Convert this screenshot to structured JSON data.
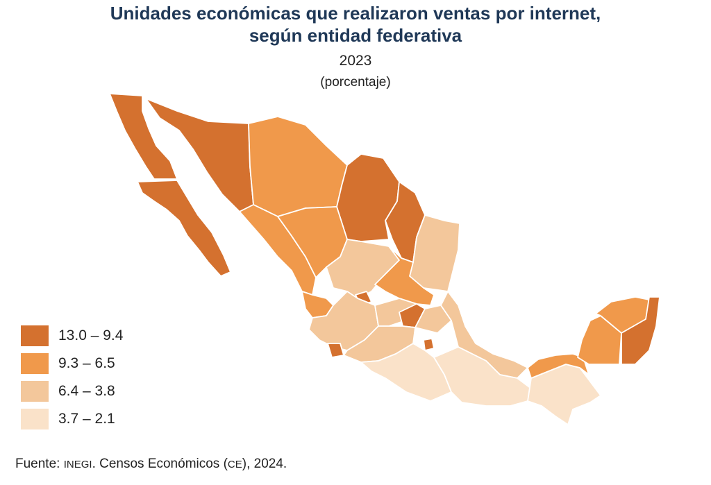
{
  "title_line1": "Unidades económicas que realizaron ventas por internet,",
  "title_line2": "según entidad federativa",
  "year": "2023",
  "unit": "(porcentaje)",
  "legend": [
    {
      "label": "13.0 – 9.4",
      "color": "#d4712f"
    },
    {
      "label": "9.3 – 6.5",
      "color": "#f0994b"
    },
    {
      "label": "6.4 – 3.8",
      "color": "#f3c79b"
    },
    {
      "label": "3.7 – 2.1",
      "color": "#fae2c9"
    }
  ],
  "source": {
    "prefix": "Fuente: ",
    "org": "INEGI",
    "mid": ". Censos Económicos (",
    "abbr": "CE",
    "suffix": "), 2024."
  },
  "regions": [
    {
      "name": "baja-california",
      "class": 0
    },
    {
      "name": "baja-california-sur",
      "class": 0
    },
    {
      "name": "sonora",
      "class": 0
    },
    {
      "name": "chihuahua",
      "class": 1
    },
    {
      "name": "coahuila",
      "class": 0
    },
    {
      "name": "nuevo-leon",
      "class": 0
    },
    {
      "name": "tamaulipas",
      "class": 2
    },
    {
      "name": "sinaloa",
      "class": 1
    },
    {
      "name": "durango",
      "class": 1
    },
    {
      "name": "zacatecas",
      "class": 2
    },
    {
      "name": "san-luis-potosi",
      "class": 1
    },
    {
      "name": "nayarit",
      "class": 1
    },
    {
      "name": "aguascalientes",
      "class": 0
    },
    {
      "name": "jalisco",
      "class": 2
    },
    {
      "name": "guanajuato",
      "class": 2
    },
    {
      "name": "queretaro",
      "class": 0
    },
    {
      "name": "hidalgo",
      "class": 2
    },
    {
      "name": "colima",
      "class": 0
    },
    {
      "name": "michoacan",
      "class": 2
    },
    {
      "name": "veracruz",
      "class": 2
    },
    {
      "name": "guerrero",
      "class": 3
    },
    {
      "name": "oaxaca",
      "class": 3
    },
    {
      "name": "chiapas",
      "class": 3
    },
    {
      "name": "tabasco",
      "class": 1
    },
    {
      "name": "campeche",
      "class": 1
    },
    {
      "name": "yucatan",
      "class": 1
    },
    {
      "name": "quintana-roo",
      "class": 0
    },
    {
      "name": "cdmx",
      "class": 0
    }
  ]
}
